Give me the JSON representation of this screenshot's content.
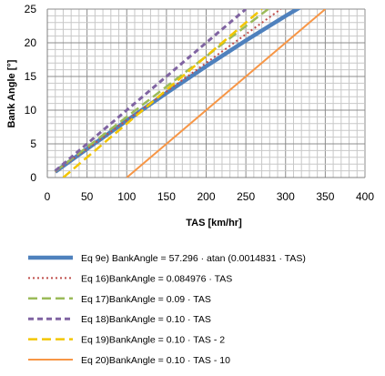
{
  "chart_data": {
    "type": "line",
    "xlabel": "TAS [km/hr]",
    "ylabel": "Bank Angle  [°]",
    "xlim": [
      0,
      400
    ],
    "ylim": [
      0,
      25
    ],
    "x_ticks": [
      "0",
      "50",
      "100",
      "150",
      "200",
      "250",
      "300",
      "350",
      "400"
    ],
    "y_ticks": [
      "0",
      "5",
      "10",
      "15",
      "20",
      "25"
    ],
    "grid": true,
    "legend_position": "bottom",
    "series": [
      {
        "name": "Eq 9e) BankAngle = 57.296 · atan (0.0014831 · TAS)",
        "color": "#4f81bd",
        "style": "solid-thick",
        "x": [
          10,
          50,
          100,
          150,
          200,
          250,
          300,
          320
        ],
        "y": [
          0.85,
          4.24,
          8.44,
          12.55,
          16.53,
          20.34,
          23.98,
          25.38
        ]
      },
      {
        "name": "Eq 16)BankAngle = 0.084976 · TAS",
        "color": "#c0504d",
        "style": "dotted",
        "x": [
          10,
          294
        ],
        "y": [
          0.85,
          25
        ]
      },
      {
        "name": "Eq 17)BankAngle = 0.09 · TAS",
        "color": "#9bbb59",
        "style": "dashed-long",
        "x": [
          10,
          278
        ],
        "y": [
          0.9,
          25
        ]
      },
      {
        "name": "Eq 18)BankAngle = 0.10 · TAS",
        "color": "#8064a2",
        "style": "dashed",
        "x": [
          10,
          250
        ],
        "y": [
          1,
          25
        ]
      },
      {
        "name": "Eq 19)BankAngle = 0.10 · TAS - 2",
        "color": "#f3c600",
        "style": "dashed-long",
        "x": [
          20,
          270
        ],
        "y": [
          0,
          25
        ]
      },
      {
        "name": "Eq 20)BankAngle = 0.10 · TAS - 10",
        "color": "#f79646",
        "style": "solid",
        "x": [
          100,
          350
        ],
        "y": [
          0,
          25
        ]
      }
    ]
  }
}
